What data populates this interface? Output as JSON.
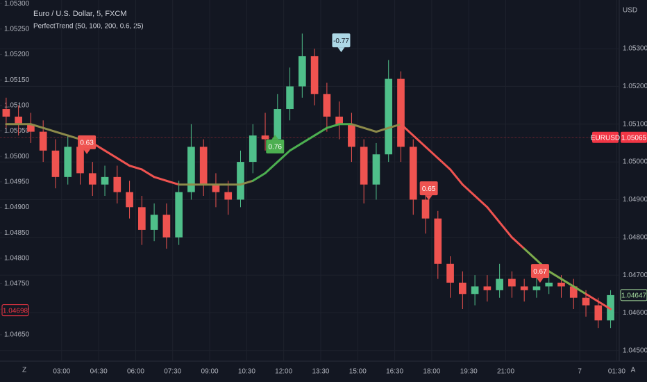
{
  "chart_data": {
    "type": "candlestick",
    "title": "Euro / U.S. Dollar, 5, FXCM",
    "subtitle": "PerfectTrend (50, 100, 200, 0.6, 25)",
    "currency": "USD",
    "x": [
      0.75,
      1.25,
      1.75,
      2.25,
      2.75,
      3.25,
      3.75,
      4.25,
      4.75,
      5.25,
      5.75,
      6.25,
      6.75,
      7.25,
      7.75,
      8.25,
      8.75,
      9.25,
      9.75,
      10.25,
      10.75,
      11.25,
      11.75,
      12.25,
      12.75,
      13.25,
      13.75,
      14.25,
      14.75,
      15.25,
      15.75,
      16.25,
      16.75,
      17.25,
      17.75,
      18.25,
      18.75,
      19.25,
      19.75,
      20.25,
      20.75,
      21.25,
      21.75,
      22.25,
      22.75,
      23.25,
      23.75,
      24.25,
      24.75,
      25.25
    ],
    "open": [
      1.0514,
      1.0512,
      1.051,
      1.0508,
      1.0503,
      1.0496,
      1.0504,
      1.0497,
      1.0494,
      1.0496,
      1.0492,
      1.0488,
      1.0482,
      1.0486,
      1.048,
      1.0492,
      1.0504,
      1.0494,
      1.0492,
      1.049,
      1.05,
      1.0507,
      1.0506,
      1.0514,
      1.052,
      1.0528,
      1.0518,
      1.0512,
      1.051,
      1.0504,
      1.0494,
      1.0502,
      1.0522,
      1.0504,
      1.049,
      1.0485,
      1.0473,
      1.0468,
      1.0465,
      1.0467,
      1.0466,
      1.0469,
      1.0467,
      1.0466,
      1.0467,
      1.0468,
      1.0467,
      1.0464,
      1.0462,
      1.0458
    ],
    "high": [
      1.0517,
      1.0515,
      1.0513,
      1.0511,
      1.0506,
      1.0507,
      1.0506,
      1.05,
      1.0499,
      1.0499,
      1.0495,
      1.0491,
      1.0489,
      1.0489,
      1.0495,
      1.051,
      1.0506,
      1.0497,
      1.0495,
      1.0503,
      1.051,
      1.0513,
      1.0518,
      1.0525,
      1.0534,
      1.053,
      1.0521,
      1.0516,
      1.0513,
      1.0506,
      1.0505,
      1.0527,
      1.0524,
      1.0506,
      1.0493,
      1.0487,
      1.0475,
      1.0471,
      1.047,
      1.047,
      1.0473,
      1.0471,
      1.0469,
      1.047,
      1.0471,
      1.047,
      1.0469,
      1.0466,
      1.0464,
      1.0466
    ],
    "low": [
      1.0509,
      1.0507,
      1.0505,
      1.05,
      1.0493,
      1.0494,
      1.0494,
      1.0491,
      1.0491,
      1.0489,
      1.0485,
      1.0478,
      1.0479,
      1.0477,
      1.0478,
      1.049,
      1.0491,
      1.0488,
      1.0486,
      1.0488,
      1.0497,
      1.0503,
      1.0504,
      1.0511,
      1.0517,
      1.0515,
      1.0508,
      1.0506,
      1.05,
      1.0489,
      1.049,
      1.05,
      1.05,
      1.0486,
      1.0481,
      1.0469,
      1.0464,
      1.0461,
      1.0462,
      1.0463,
      1.0464,
      1.0464,
      1.0463,
      1.0464,
      1.0465,
      1.0464,
      1.0461,
      1.0459,
      1.0456,
      1.0456
    ],
    "close": [
      1.0512,
      1.051,
      1.0508,
      1.0503,
      1.0496,
      1.0504,
      1.0497,
      1.0494,
      1.0496,
      1.0492,
      1.0488,
      1.0482,
      1.0486,
      1.048,
      1.0492,
      1.0504,
      1.0494,
      1.0492,
      1.049,
      1.05,
      1.0507,
      1.0506,
      1.0514,
      1.052,
      1.0528,
      1.0518,
      1.0512,
      1.051,
      1.0504,
      1.0494,
      1.0502,
      1.0522,
      1.0504,
      1.049,
      1.0485,
      1.0473,
      1.0468,
      1.0465,
      1.0467,
      1.0466,
      1.0469,
      1.0467,
      1.0466,
      1.0467,
      1.0468,
      1.0467,
      1.0464,
      1.0462,
      1.0458,
      1.04647
    ],
    "up_color": "#4fbf8a",
    "down_color": "#ef5350",
    "ma": {
      "values": [
        1.051,
        1.051,
        1.051,
        1.0509,
        1.0508,
        1.0507,
        1.0506,
        1.0505,
        1.0503,
        1.0501,
        1.0499,
        1.0498,
        1.0496,
        1.0495,
        1.0494,
        1.0494,
        1.0494,
        1.0494,
        1.0494,
        1.0494,
        1.0495,
        1.0497,
        1.05,
        1.0503,
        1.0505,
        1.0507,
        1.0509,
        1.051,
        1.051,
        1.0509,
        1.0508,
        1.0509,
        1.051,
        1.0507,
        1.0504,
        1.0501,
        1.0498,
        1.0494,
        1.0491,
        1.0488,
        1.0484,
        1.048,
        1.0477,
        1.0474,
        1.0471,
        1.0469,
        1.0467,
        1.0465,
        1.0463,
        1.0461
      ],
      "colors": [
        "#8c8a4a",
        "#8c8a4a",
        "#8c8a4a",
        "#8c8a4a",
        "#8c8a4a",
        "#8c8a4a",
        "#ef5350",
        "#ef5350",
        "#ef5350",
        "#ef5350",
        "#ef5350",
        "#ef5350",
        "#ef5350",
        "#ef5350",
        "#8c8a4a",
        "#8c8a4a",
        "#8c8a4a",
        "#8c8a4a",
        "#8c8a4a",
        "#8c8a4a",
        "#4caf50",
        "#4caf50",
        "#4caf50",
        "#4caf50",
        "#4caf50",
        "#4caf50",
        "#4caf50",
        "#4caf50",
        "#8c8a4a",
        "#8c8a4a",
        "#8c8a4a",
        "#8c8a4a",
        "#ef5350",
        "#ef5350",
        "#ef5350",
        "#ef5350",
        "#ef5350",
        "#ef5350",
        "#ef5350",
        "#ef5350",
        "#ef5350",
        "#ef5350",
        "#7cab4c",
        "#7cab4c",
        "#7cab4c",
        "#7cab4c",
        "#7cab4c",
        "#ef5350",
        "#ef5350",
        "#ef5350"
      ]
    },
    "xlim": [
      0.5,
      25.6
    ],
    "xticks": [
      {
        "value": 3,
        "label": "03:00"
      },
      {
        "value": 4.5,
        "label": "04:30"
      },
      {
        "value": 6,
        "label": "06:00"
      },
      {
        "value": 7.5,
        "label": "07:30"
      },
      {
        "value": 9,
        "label": "09:00"
      },
      {
        "value": 10.5,
        "label": "10:30"
      },
      {
        "value": 12,
        "label": "12:00"
      },
      {
        "value": 13.5,
        "label": "13:30"
      },
      {
        "value": 15,
        "label": "15:00"
      },
      {
        "value": 16.5,
        "label": "16:30"
      },
      {
        "value": 18,
        "label": "18:00"
      },
      {
        "value": 19.5,
        "label": "19:30"
      },
      {
        "value": 21,
        "label": "21:00"
      },
      {
        "value": 24,
        "label": "7"
      },
      {
        "value": 25.5,
        "label": "01:30"
      }
    ],
    "ylim": [
      1.04472,
      1.05429
    ],
    "yticks": [
      {
        "value": 1.053,
        "label": "1.05300"
      },
      {
        "value": 1.052,
        "label": "1.05200"
      },
      {
        "value": 1.051,
        "label": "1.05100"
      },
      {
        "value": 1.05,
        "label": "1.05000"
      },
      {
        "value": 1.049,
        "label": "1.04900"
      },
      {
        "value": 1.048,
        "label": "1.04800"
      },
      {
        "value": 1.047,
        "label": "1.04700"
      },
      {
        "value": 1.046,
        "label": "1.04600"
      },
      {
        "value": 1.045,
        "label": "1.04500"
      }
    ],
    "y2lim": [
      1.04598,
      1.05307
    ],
    "y2ticks": [
      {
        "value": 1.053,
        "label": "1.05300"
      },
      {
        "value": 1.0525,
        "label": "1.05250"
      },
      {
        "value": 1.052,
        "label": "1.05200"
      },
      {
        "value": 1.0515,
        "label": "1.05150"
      },
      {
        "value": 1.051,
        "label": "1.05100"
      },
      {
        "value": 1.0505,
        "label": "1.05050"
      },
      {
        "value": 1.05,
        "label": "1.05000"
      },
      {
        "value": 1.0495,
        "label": "1.04950"
      },
      {
        "value": 1.049,
        "label": "1.04900"
      },
      {
        "value": 1.0485,
        "label": "1.04850"
      },
      {
        "value": 1.048,
        "label": "1.04800"
      },
      {
        "value": 1.0475,
        "label": "1.04750"
      },
      {
        "value": 1.047,
        "label": "1.04700"
      },
      {
        "value": 1.0465,
        "label": "1.04650"
      }
    ],
    "price_line": {
      "name": "EURUSD",
      "value": 1.05065,
      "label": "1.05065",
      "color": "#f23645"
    },
    "last_price": {
      "value": 1.04647,
      "label": "1.04647",
      "color": "#a8e0a0"
    },
    "left_marker": {
      "value": 1.04698,
      "label": "1.04698",
      "color": "#f23645"
    },
    "annotations": [
      {
        "text": "0.63",
        "x": 4.02,
        "y": 1.05052,
        "color": "#ef5350",
        "pointer": "down"
      },
      {
        "text": "0.76",
        "x": 11.65,
        "y": 1.05041,
        "color": "#4caf50",
        "pointer": "up"
      },
      {
        "text": "-0.77",
        "x": 14.33,
        "y": 1.05322,
        "color": "#add8e6",
        "pointer": "down"
      },
      {
        "text": "0.65",
        "x": 17.88,
        "y": 1.0493,
        "color": "#ef5350",
        "pointer": "down"
      },
      {
        "text": "0.67",
        "x": 22.39,
        "y": 1.04711,
        "color": "#ef5350",
        "pointer": "down"
      }
    ]
  },
  "ui": {
    "left_button": "Z",
    "right_button": "A"
  }
}
